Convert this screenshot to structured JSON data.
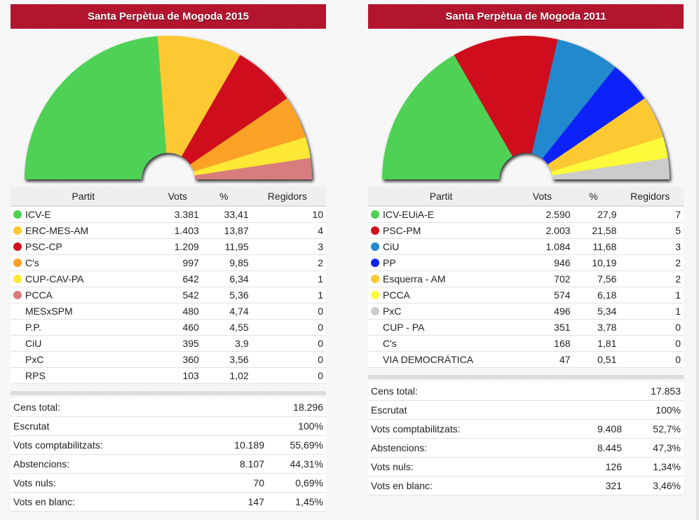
{
  "panels": [
    {
      "title": "Santa Perpètua de Mogoda 2015",
      "headers": {
        "party": "Partit",
        "votes": "Vots",
        "pct": "%",
        "seats": "Regidors"
      },
      "rows": [
        {
          "party": "ICV-E",
          "votes": "3.381",
          "pct": "33,41",
          "seats": "10",
          "color": "#4fd155"
        },
        {
          "party": "ERC-MES-AM",
          "votes": "1.403",
          "pct": "13,87",
          "seats": "4",
          "color": "#fcc930"
        },
        {
          "party": "PSC-CP",
          "votes": "1.209",
          "pct": "11,95",
          "seats": "3",
          "color": "#d0111f"
        },
        {
          "party": "C's",
          "votes": "997",
          "pct": "9,85",
          "seats": "2",
          "color": "#fca228"
        },
        {
          "party": "CUP-CAV-PA",
          "votes": "642",
          "pct": "6,34",
          "seats": "1",
          "color": "#fde935"
        },
        {
          "party": "PCCA",
          "votes": "542",
          "pct": "5,36",
          "seats": "1",
          "color": "#d97b7d"
        },
        {
          "party": "MESxSPM",
          "votes": "480",
          "pct": "4,74",
          "seats": "0",
          "color": null
        },
        {
          "party": "P.P.",
          "votes": "460",
          "pct": "4,55",
          "seats": "0",
          "color": null
        },
        {
          "party": "CiU",
          "votes": "395",
          "pct": "3,9",
          "seats": "0",
          "color": null
        },
        {
          "party": "PxC",
          "votes": "360",
          "pct": "3,56",
          "seats": "0",
          "color": null
        },
        {
          "party": "RPS",
          "votes": "103",
          "pct": "1,02",
          "seats": "0",
          "color": null
        }
      ],
      "summary": [
        {
          "label": "Cens total:",
          "value": "",
          "pct": "18.296"
        },
        {
          "label": "Escrutat",
          "value": "",
          "pct": "100%"
        },
        {
          "label": "Vots comptabilitzats:",
          "value": "10.189",
          "pct": "55,69%"
        },
        {
          "label": "Abstencions:",
          "value": "8.107",
          "pct": "44,31%"
        },
        {
          "label": "Vots nuls:",
          "value": "70",
          "pct": "0,69%"
        },
        {
          "label": "Vots en blanc:",
          "value": "147",
          "pct": "1,45%"
        }
      ]
    },
    {
      "title": "Santa Perpètua de Mogoda 2011",
      "headers": {
        "party": "Partit",
        "votes": "Vots",
        "pct": "%",
        "seats": "Regidors"
      },
      "rows": [
        {
          "party": "ICV-EUiA-E",
          "votes": "2.590",
          "pct": "27,9",
          "seats": "7",
          "color": "#4fd155"
        },
        {
          "party": "PSC-PM",
          "votes": "2.003",
          "pct": "21,58",
          "seats": "5",
          "color": "#d0111f"
        },
        {
          "party": "CiU",
          "votes": "1.084",
          "pct": "11,68",
          "seats": "3",
          "color": "#2189cf"
        },
        {
          "party": "PP",
          "votes": "946",
          "pct": "10,19",
          "seats": "2",
          "color": "#0f23f8"
        },
        {
          "party": "Esquerra - AM",
          "votes": "702",
          "pct": "7,56",
          "seats": "2",
          "color": "#fcc930"
        },
        {
          "party": "PCCA",
          "votes": "574",
          "pct": "6,18",
          "seats": "1",
          "color": "#fdfa3a"
        },
        {
          "party": "PxC",
          "votes": "496",
          "pct": "5,34",
          "seats": "1",
          "color": "#cccccc"
        },
        {
          "party": "CUP - PA",
          "votes": "351",
          "pct": "3,78",
          "seats": "0",
          "color": null
        },
        {
          "party": "C's",
          "votes": "168",
          "pct": "1,81",
          "seats": "0",
          "color": null
        },
        {
          "party": "VIA DEMOCRÁTICA",
          "votes": "47",
          "pct": "0,51",
          "seats": "0",
          "color": null
        }
      ],
      "summary": [
        {
          "label": "Cens total:",
          "value": "",
          "pct": "17.853"
        },
        {
          "label": "Escrutat",
          "value": "",
          "pct": "100%"
        },
        {
          "label": "Vots comptabilitzats:",
          "value": "9.408",
          "pct": "52,7%"
        },
        {
          "label": "Abstencions:",
          "value": "8.445",
          "pct": "47,3%"
        },
        {
          "label": "Vots nuls:",
          "value": "126",
          "pct": "1,34%"
        },
        {
          "label": "Vots en blanc:",
          "value": "321",
          "pct": "3,46%"
        }
      ]
    }
  ],
  "chart_data": [
    {
      "type": "pie",
      "subtype": "hemicycle",
      "title": "Santa Perpètua de Mogoda 2015",
      "categories": [
        "ICV-E",
        "ERC-MES-AM",
        "PSC-CP",
        "C's",
        "CUP-CAV-PA",
        "PCCA"
      ],
      "values": [
        10,
        4,
        3,
        2,
        1,
        1
      ],
      "colors": [
        "#4fd155",
        "#fcc930",
        "#d0111f",
        "#fca228",
        "#fde935",
        "#d97b7d"
      ],
      "value_label": "Regidors"
    },
    {
      "type": "pie",
      "subtype": "hemicycle",
      "title": "Santa Perpètua de Mogoda 2011",
      "categories": [
        "ICV-EUiA-E",
        "PSC-PM",
        "CiU",
        "PP",
        "Esquerra - AM",
        "PCCA",
        "PxC"
      ],
      "values": [
        7,
        5,
        3,
        2,
        2,
        1,
        1
      ],
      "colors": [
        "#4fd155",
        "#d0111f",
        "#2189cf",
        "#0f23f8",
        "#fcc930",
        "#fdfa3a",
        "#cccccc"
      ],
      "value_label": "Regidors"
    }
  ]
}
